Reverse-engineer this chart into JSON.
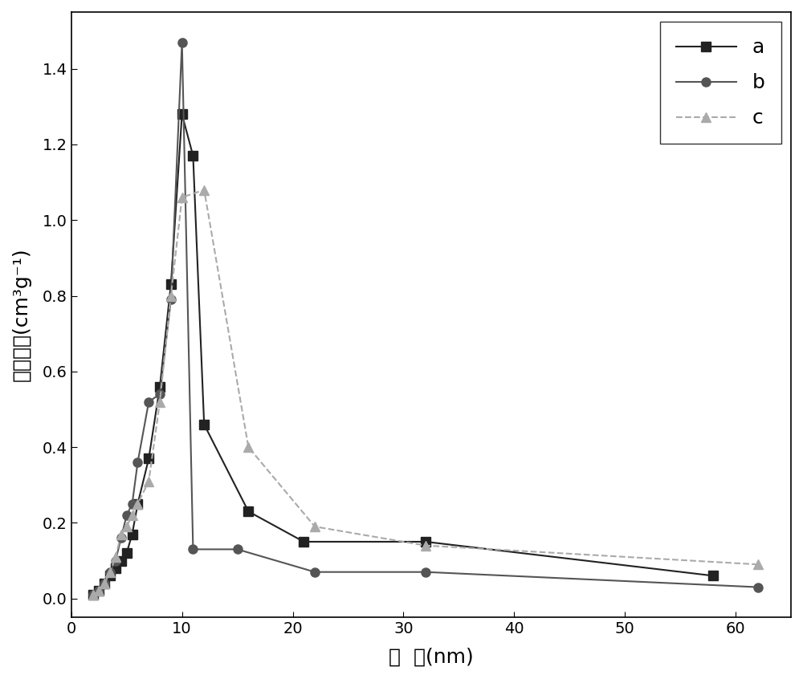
{
  "series_a": {
    "x": [
      2.0,
      2.5,
      3.0,
      3.5,
      4.0,
      4.5,
      5.0,
      5.5,
      6.0,
      7.0,
      8.0,
      9.0,
      10.0,
      11.0,
      12.0,
      16.0,
      21.0,
      32.0,
      58.0
    ],
    "y": [
      0.01,
      0.02,
      0.04,
      0.06,
      0.08,
      0.1,
      0.12,
      0.17,
      0.25,
      0.37,
      0.56,
      0.83,
      1.28,
      1.17,
      0.46,
      0.23,
      0.15,
      0.15,
      0.06
    ],
    "color": "#222222",
    "marker": "s",
    "label": "a",
    "linestyle": "-"
  },
  "series_b": {
    "x": [
      2.0,
      2.5,
      3.0,
      3.5,
      4.0,
      4.5,
      5.0,
      5.5,
      6.0,
      7.0,
      8.0,
      9.0,
      10.0,
      11.0,
      15.0,
      22.0,
      32.0,
      62.0
    ],
    "y": [
      0.01,
      0.02,
      0.04,
      0.07,
      0.1,
      0.16,
      0.22,
      0.25,
      0.36,
      0.52,
      0.54,
      0.79,
      1.47,
      0.13,
      0.13,
      0.07,
      0.07,
      0.03
    ],
    "color": "#555555",
    "marker": "o",
    "label": "b",
    "linestyle": "-"
  },
  "series_c": {
    "x": [
      2.0,
      2.5,
      3.0,
      3.5,
      4.0,
      4.5,
      5.0,
      5.5,
      6.0,
      7.0,
      8.0,
      9.0,
      10.0,
      12.0,
      16.0,
      22.0,
      32.0,
      62.0
    ],
    "y": [
      0.01,
      0.02,
      0.04,
      0.07,
      0.11,
      0.17,
      0.19,
      0.22,
      0.25,
      0.31,
      0.52,
      0.8,
      1.06,
      1.08,
      0.4,
      0.19,
      0.14,
      0.09
    ],
    "color": "#aaaaaa",
    "marker": "^",
    "label": "c",
    "linestyle": "--"
  },
  "xlabel": "孔  径(nm)",
  "ylabel": "吸附容量(cm³g⁻¹)",
  "xlim": [
    0,
    65
  ],
  "ylim": [
    -0.05,
    1.55
  ],
  "xticks": [
    0,
    10,
    20,
    30,
    40,
    50,
    60
  ],
  "yticks": [
    0.0,
    0.2,
    0.4,
    0.6,
    0.8,
    1.0,
    1.2,
    1.4
  ],
  "legend_loc": "upper right",
  "figure_width": 10.0,
  "figure_height": 8.46,
  "dpi": 100
}
